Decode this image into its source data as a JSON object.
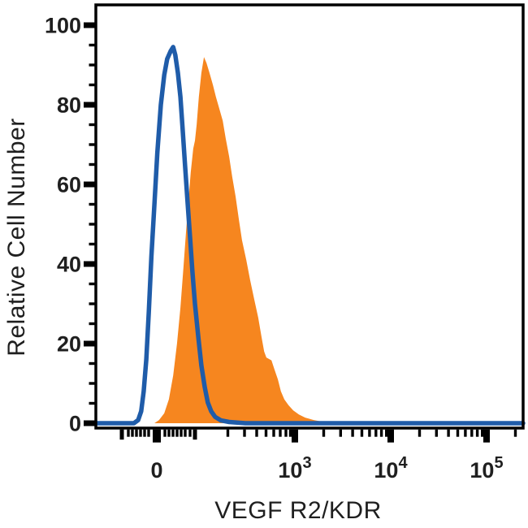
{
  "figure": {
    "background": "#ffffff",
    "frame_color": "#000000",
    "text_color": "#1f1f1f"
  },
  "chart_data": {
    "type": "area",
    "variant": "flow-cytometry-histogram-overlay",
    "title": "",
    "xlabel": "VEGF R2/KDR",
    "ylabel": "Relative Cell Number",
    "legend": "none",
    "grid": "off",
    "x_axis": {
      "scale": "biexponential",
      "major_ticks": [
        {
          "x": 0.1426,
          "base": "0",
          "exp": ""
        },
        {
          "x": 0.4658,
          "base": "10",
          "exp": "3"
        },
        {
          "x": 0.6901,
          "base": "10",
          "exp": "4"
        },
        {
          "x": 0.9144,
          "base": "10",
          "exp": "5"
        }
      ],
      "medium_ticks": [
        0.0608,
        0.2319
      ],
      "minor_ticks": [
        0.076,
        0.0856,
        0.0951,
        0.1046,
        0.1141,
        0.1236,
        0.1616,
        0.1711,
        0.1806,
        0.1901,
        0.1996,
        0.2091,
        0.2205,
        0.3089,
        0.3479,
        0.3764,
        0.3983,
        0.4163,
        0.4316,
        0.4449,
        0.4553,
        0.5333,
        0.5728,
        0.601,
        0.6226,
        0.6405,
        0.6555,
        0.6684,
        0.68,
        0.7576,
        0.7971,
        0.8253,
        0.847,
        0.8648,
        0.8798,
        0.8928,
        0.9043,
        0.9819
      ]
    },
    "y_axis": {
      "ticks": [
        0,
        20,
        40,
        60,
        80,
        100
      ],
      "minor_step": 5,
      "range": [
        0,
        105
      ]
    },
    "series": [
      {
        "name": "stained-sample-filled",
        "color": "#F6861F",
        "style": "filled-area",
        "peak": {
          "value": 92
        },
        "points": [
          [
            0.137,
            0
          ],
          [
            0.148,
            0.8
          ],
          [
            0.16,
            2.5
          ],
          [
            0.171,
            6
          ],
          [
            0.181,
            12
          ],
          [
            0.19,
            20
          ],
          [
            0.198,
            29
          ],
          [
            0.205,
            39
          ],
          [
            0.211,
            48
          ],
          [
            0.217,
            56
          ],
          [
            0.222,
            63
          ],
          [
            0.228,
            69
          ],
          [
            0.232,
            71
          ],
          [
            0.236,
            75
          ],
          [
            0.241,
            82
          ],
          [
            0.247,
            88
          ],
          [
            0.253,
            92
          ],
          [
            0.259,
            90.5
          ],
          [
            0.266,
            88
          ],
          [
            0.274,
            85
          ],
          [
            0.281,
            82
          ],
          [
            0.289,
            79
          ],
          [
            0.297,
            76
          ],
          [
            0.304,
            71.5
          ],
          [
            0.312,
            67
          ],
          [
            0.319,
            62
          ],
          [
            0.327,
            57
          ],
          [
            0.335,
            51
          ],
          [
            0.342,
            46
          ],
          [
            0.352,
            41
          ],
          [
            0.361,
            36
          ],
          [
            0.371,
            31
          ],
          [
            0.38,
            26.5
          ],
          [
            0.388,
            21.5
          ],
          [
            0.394,
            18
          ],
          [
            0.399,
            16.5
          ],
          [
            0.411,
            15.8
          ],
          [
            0.418,
            13.5
          ],
          [
            0.426,
            11
          ],
          [
            0.433,
            8
          ],
          [
            0.441,
            6
          ],
          [
            0.451,
            4.5
          ],
          [
            0.462,
            3.2
          ],
          [
            0.475,
            2.2
          ],
          [
            0.49,
            1.4
          ],
          [
            0.51,
            0.8
          ],
          [
            0.529,
            0.4
          ],
          [
            0.551,
            0.15
          ],
          [
            0.574,
            0
          ]
        ]
      },
      {
        "name": "control-open-line",
        "color": "#1F5CA9",
        "style": "line",
        "stroke_width": 5.5,
        "peak": {
          "value": 94.5
        },
        "points": [
          [
            0.0,
            0
          ],
          [
            0.089,
            0
          ],
          [
            0.099,
            0.8
          ],
          [
            0.106,
            3
          ],
          [
            0.112,
            8
          ],
          [
            0.118,
            16
          ],
          [
            0.124,
            28
          ],
          [
            0.13,
            42
          ],
          [
            0.137,
            55
          ],
          [
            0.144,
            68
          ],
          [
            0.152,
            80
          ],
          [
            0.16,
            87.5
          ],
          [
            0.167,
            91.5
          ],
          [
            0.175,
            93.5
          ],
          [
            0.181,
            94.5
          ],
          [
            0.186,
            92.5
          ],
          [
            0.192,
            88
          ],
          [
            0.198,
            82
          ],
          [
            0.203,
            74
          ],
          [
            0.209,
            64.5
          ],
          [
            0.215,
            55
          ],
          [
            0.221,
            46
          ],
          [
            0.226,
            38
          ],
          [
            0.232,
            30
          ],
          [
            0.24,
            21.5
          ],
          [
            0.247,
            14.5
          ],
          [
            0.255,
            9
          ],
          [
            0.262,
            5.2
          ],
          [
            0.27,
            3
          ],
          [
            0.279,
            1.6
          ],
          [
            0.293,
            0.7
          ],
          [
            0.312,
            0.3
          ],
          [
            0.35,
            0
          ],
          [
            1.0,
            0
          ]
        ]
      }
    ]
  }
}
